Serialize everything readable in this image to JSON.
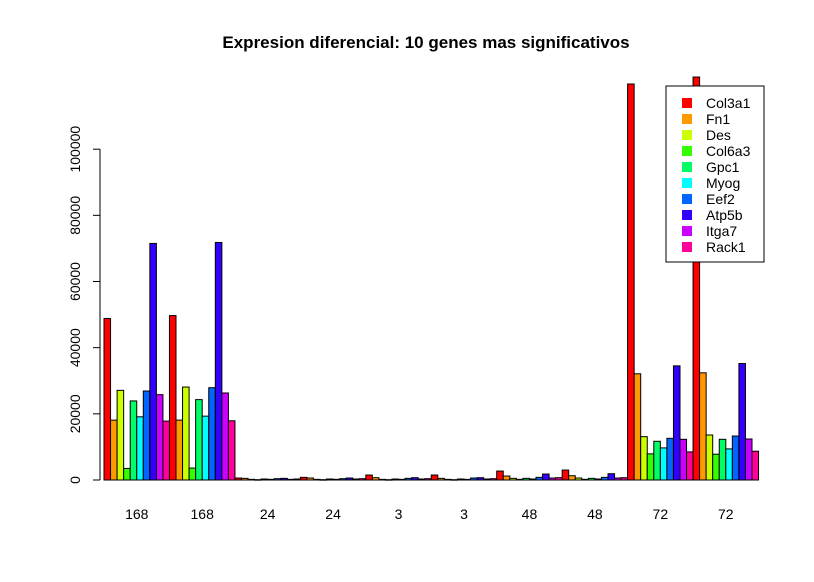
{
  "chart_data": {
    "type": "bar",
    "title": "Expresion diferencial: 10 genes mas significativos",
    "xlabel": "",
    "ylabel": "",
    "ylim": [
      0,
      120000
    ],
    "yticks": [
      0,
      20000,
      40000,
      60000,
      80000,
      100000
    ],
    "ytick_labels": [
      "0",
      "20000",
      "40000",
      "60000",
      "80000",
      "100000"
    ],
    "categories": [
      "168",
      "168",
      "24",
      "24",
      "3",
      "3",
      "48",
      "48",
      "72",
      "72"
    ],
    "legend_position": "top-right",
    "series": [
      {
        "name": "Col3a1",
        "color": "#FF0000",
        "values": [
          48800,
          49700,
          600,
          800,
          1500,
          1500,
          2700,
          3000,
          119700,
          121800
        ]
      },
      {
        "name": "Fn1",
        "color": "#FF9900",
        "values": [
          18100,
          18100,
          500,
          600,
          700,
          500,
          1200,
          1300,
          32100,
          32400
        ]
      },
      {
        "name": "Des",
        "color": "#CCFF00",
        "values": [
          27100,
          28100,
          200,
          200,
          200,
          200,
          500,
          600,
          13100,
          13600
        ]
      },
      {
        "name": "Col6a3",
        "color": "#33FF00",
        "values": [
          3500,
          3600,
          100,
          100,
          100,
          100,
          200,
          200,
          7900,
          7800
        ]
      },
      {
        "name": "Gpc1",
        "color": "#00FF66",
        "values": [
          23900,
          24300,
          300,
          300,
          300,
          300,
          500,
          500,
          11700,
          12300
        ]
      },
      {
        "name": "Myog",
        "color": "#00FFFF",
        "values": [
          19100,
          19300,
          200,
          200,
          200,
          200,
          300,
          300,
          9700,
          9400
        ]
      },
      {
        "name": "Eef2",
        "color": "#0066FF",
        "values": [
          26900,
          27900,
          400,
          400,
          500,
          600,
          800,
          800,
          12600,
          13300
        ]
      },
      {
        "name": "Atp5b",
        "color": "#3300FF",
        "values": [
          71500,
          71800,
          500,
          600,
          700,
          700,
          1800,
          1900,
          34500,
          35200
        ]
      },
      {
        "name": "Itga7",
        "color": "#CC00FF",
        "values": [
          25800,
          26300,
          200,
          300,
          300,
          300,
          600,
          600,
          12300,
          12400
        ]
      },
      {
        "name": "Rack1",
        "color": "#FF0099",
        "values": [
          17800,
          17900,
          300,
          400,
          400,
          400,
          700,
          700,
          8500,
          8700
        ]
      }
    ]
  }
}
